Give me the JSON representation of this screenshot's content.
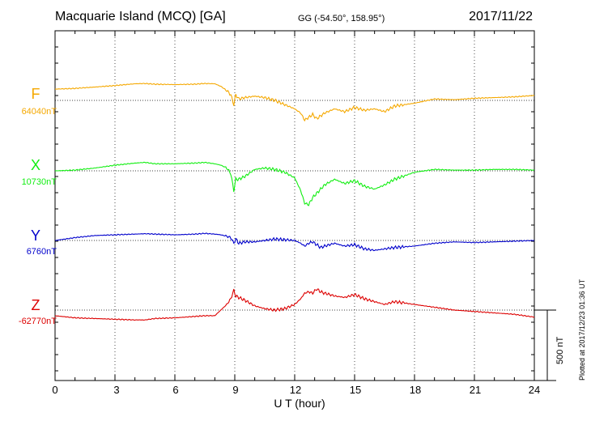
{
  "header": {
    "station": "Macquarie Island (MCQ)  [GA]",
    "coords": "GG (-54.50°, 158.95°)",
    "date": "2017/11/22"
  },
  "footer_note": "Plotted at 2017/12/23 01:36 UT",
  "scale_bar_label": "500 nT",
  "chart_data": {
    "type": "line",
    "xlabel": "U T (hour)",
    "xlim": [
      0,
      24
    ],
    "xticks": [
      "0",
      "3",
      "6",
      "9",
      "12",
      "15",
      "18",
      "21",
      "24"
    ],
    "grid": true,
    "scale_bar_nT": 500,
    "series": [
      {
        "name": "F",
        "baseline": "64040nT",
        "color": "#f5a800",
        "x": [
          0,
          1,
          2,
          3,
          4,
          4.5,
          5,
          6,
          7,
          7.5,
          8,
          8.3,
          8.6,
          8.8,
          8.95,
          9.05,
          9.2,
          9.5,
          10,
          10.5,
          11,
          11.5,
          12,
          12.3,
          12.5,
          12.7,
          12.9,
          13.1,
          13.3,
          13.5,
          14,
          14.5,
          15,
          15.5,
          16,
          16.5,
          17,
          18,
          19,
          20,
          21,
          22,
          23,
          24
        ],
        "y": [
          80,
          85,
          95,
          105,
          118,
          120,
          115,
          112,
          115,
          120,
          118,
          100,
          70,
          40,
          -30,
          40,
          10,
          20,
          30,
          20,
          0,
          -30,
          -60,
          -90,
          -140,
          -120,
          -100,
          -130,
          -110,
          -90,
          -60,
          -80,
          -50,
          -70,
          -60,
          -80,
          -40,
          -20,
          10,
          5,
          15,
          20,
          25,
          35
        ]
      },
      {
        "name": "X",
        "baseline": "10730nT",
        "color": "#11ee11",
        "x": [
          0,
          1,
          2,
          3,
          4,
          4.5,
          5,
          6,
          7,
          7.5,
          8,
          8.3,
          8.6,
          8.8,
          8.95,
          9.05,
          9.2,
          9.5,
          10,
          10.5,
          11,
          11.5,
          12,
          12.3,
          12.5,
          12.7,
          12.9,
          13.1,
          13.3,
          13.5,
          14,
          14.5,
          15,
          15.5,
          16,
          16.5,
          17,
          18,
          19,
          20,
          21,
          22,
          23,
          24
        ],
        "y": [
          0,
          5,
          20,
          40,
          55,
          60,
          50,
          50,
          55,
          60,
          50,
          40,
          20,
          -20,
          -140,
          -60,
          -60,
          -40,
          10,
          20,
          10,
          -10,
          -50,
          -140,
          -230,
          -240,
          -190,
          -160,
          -130,
          -100,
          -60,
          -90,
          -70,
          -110,
          -130,
          -100,
          -60,
          -10,
          10,
          5,
          5,
          10,
          10,
          5
        ]
      },
      {
        "name": "Y",
        "baseline": "6760nT",
        "color": "#0000cc",
        "x": [
          0,
          1,
          2,
          3,
          4,
          4.5,
          5,
          6,
          7,
          7.5,
          8,
          8.3,
          8.6,
          8.8,
          8.95,
          9.05,
          9.2,
          9.5,
          10,
          10.5,
          11,
          11.5,
          12,
          12.3,
          12.5,
          12.7,
          12.9,
          13.1,
          13.3,
          13.5,
          14,
          14.5,
          15,
          15.5,
          16,
          16.5,
          17,
          18,
          19,
          20,
          21,
          22,
          23,
          24
        ],
        "y": [
          0,
          20,
          35,
          40,
          45,
          48,
          45,
          40,
          45,
          50,
          45,
          40,
          30,
          20,
          -20,
          10,
          -20,
          -10,
          -10,
          0,
          10,
          5,
          0,
          -20,
          -40,
          -20,
          -10,
          -30,
          -50,
          -40,
          -20,
          -40,
          -30,
          -60,
          -70,
          -60,
          -50,
          -40,
          -20,
          -10,
          -15,
          -10,
          -5,
          0
        ]
      },
      {
        "name": "Z",
        "baseline": "-62770nT",
        "color": "#dd0000",
        "x": [
          0,
          1,
          2,
          3,
          4,
          4.5,
          5,
          6,
          7,
          7.5,
          8,
          8.3,
          8.6,
          8.8,
          8.95,
          9.05,
          9.2,
          9.5,
          10,
          10.5,
          11,
          11.5,
          12,
          12.3,
          12.5,
          12.7,
          12.9,
          13.1,
          13.3,
          13.5,
          14,
          14.5,
          15,
          15.5,
          16,
          16.5,
          17,
          18,
          19,
          20,
          21,
          22,
          23,
          24
        ],
        "y": [
          -40,
          -55,
          -60,
          -65,
          -70,
          -70,
          -60,
          -55,
          -45,
          -40,
          -40,
          0,
          40,
          80,
          140,
          100,
          90,
          70,
          30,
          10,
          0,
          10,
          40,
          80,
          120,
          130,
          120,
          150,
          130,
          120,
          100,
          90,
          110,
          80,
          60,
          40,
          60,
          40,
          20,
          0,
          -10,
          -20,
          -30,
          -50
        ]
      }
    ]
  }
}
